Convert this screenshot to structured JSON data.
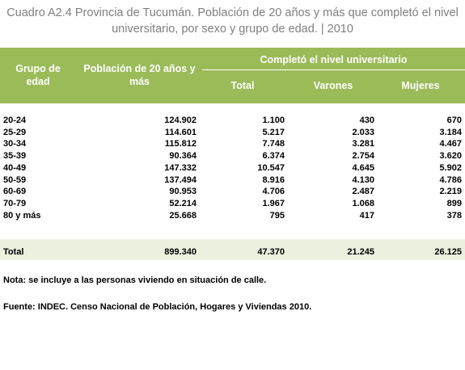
{
  "header": {
    "title": "Cuadro A2.4 Provincia de Tucumán. Población de 20 años y más que completó el nivel universitario, por sexo y grupo de edad. |  2010"
  },
  "table": {
    "header": [
      "Grupo de edad",
      "Población de 20 años y más"
    ],
    "group_header": "Completó el nivel universitario",
    "subheader": [
      "Total",
      "Varones",
      "Mujeres"
    ],
    "rows": [
      [
        "20-24",
        "124.902",
        "1.100",
        "430",
        "670"
      ],
      [
        "25-29",
        "114.601",
        "5.217",
        "2.033",
        "3.184"
      ],
      [
        "30-34",
        "115.812",
        "7.748",
        "3.281",
        "4.467"
      ],
      [
        "35-39",
        "90.364",
        "6.374",
        "2.754",
        "3.620"
      ],
      [
        "40-49",
        "147.332",
        "10.547",
        "4.645",
        "5.902"
      ],
      [
        "50-59",
        "137.494",
        "8.916",
        "4.130",
        "4.786"
      ],
      [
        "60-69",
        "90.953",
        "4.706",
        "2.487",
        "2.219"
      ],
      [
        "70-79",
        "52.214",
        "1.967",
        "1.068",
        "899"
      ],
      [
        "80 y más",
        "25.668",
        "795",
        "417",
        "378"
      ]
    ],
    "total": [
      "Total",
      "899.340",
      "47.370",
      "21.245",
      "26.125"
    ]
  },
  "notes": [
    "Nota: se incluye a las personas viviendo en situación de calle.",
    "Fuente: INDEC. Censo Nacional de Población, Hogares y Viviendas 2010."
  ]
}
